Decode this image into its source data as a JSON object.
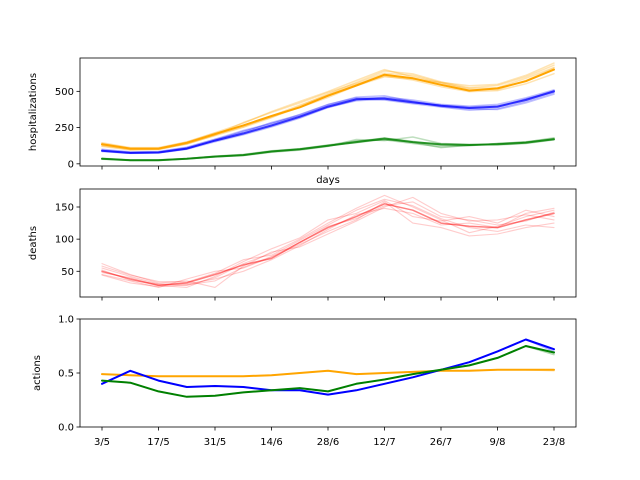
{
  "chart_data": [
    {
      "type": "line",
      "panel": "top",
      "title": "",
      "xlabel": "days",
      "ylabel": "hospitalizations",
      "x": [
        "3/5",
        "10/5",
        "17/5",
        "24/5",
        "31/5",
        "7/6",
        "14/6",
        "21/6",
        "28/6",
        "5/7",
        "12/7",
        "19/7",
        "26/7",
        "2/8",
        "9/8",
        "16/8",
        "23/8"
      ],
      "ylim": [
        -15,
        730
      ],
      "yticks": [
        0,
        250,
        500
      ],
      "grid": false,
      "series": [
        {
          "color": "#ffa500",
          "alpha": 1.0,
          "values": [
            135,
            105,
            105,
            145,
            205,
            265,
            330,
            390,
            470,
            540,
            615,
            590,
            545,
            505,
            520,
            570,
            650
          ]
        },
        {
          "color": "#ffa500",
          "alpha": 0.3,
          "values": [
            125,
            98,
            100,
            138,
            195,
            252,
            318,
            398,
            482,
            562,
            640,
            620,
            565,
            525,
            540,
            600,
            680
          ]
        },
        {
          "color": "#ffa500",
          "alpha": 0.3,
          "values": [
            145,
            112,
            112,
            152,
            215,
            280,
            360,
            430,
            498,
            575,
            650,
            600,
            555,
            520,
            525,
            590,
            665
          ]
        },
        {
          "color": "#ffa500",
          "alpha": 0.3,
          "values": [
            130,
            100,
            98,
            140,
            200,
            255,
            330,
            405,
            475,
            548,
            605,
            578,
            532,
            498,
            505,
            552,
            622
          ]
        },
        {
          "color": "#ffa500",
          "alpha": 0.3,
          "values": [
            140,
            108,
            108,
            150,
            212,
            262,
            322,
            388,
            458,
            538,
            600,
            585,
            562,
            538,
            548,
            610,
            695
          ]
        },
        {
          "color": "#ffa500",
          "alpha": 0.3,
          "values": [
            120,
            95,
            102,
            136,
            198,
            285,
            355,
            420,
            492,
            555,
            625,
            610,
            560,
            512,
            512,
            575,
            660
          ]
        },
        {
          "color": "#0000ff",
          "alpha": 0.75,
          "values": [
            90,
            75,
            78,
            105,
            160,
            210,
            265,
            325,
            395,
            445,
            450,
            425,
            400,
            385,
            395,
            440,
            500
          ]
        },
        {
          "color": "#0000ff",
          "alpha": 0.25,
          "values": [
            95,
            80,
            82,
            112,
            168,
            218,
            285,
            338,
            408,
            460,
            470,
            430,
            395,
            378,
            375,
            420,
            480
          ]
        },
        {
          "color": "#0000ff",
          "alpha": 0.25,
          "values": [
            85,
            72,
            75,
            100,
            152,
            200,
            255,
            315,
            388,
            440,
            460,
            440,
            410,
            398,
            410,
            455,
            510
          ]
        },
        {
          "color": "#0000ff",
          "alpha": 0.25,
          "values": [
            100,
            82,
            85,
            115,
            170,
            230,
            280,
            330,
            400,
            450,
            440,
            415,
            392,
            370,
            380,
            430,
            490
          ]
        },
        {
          "color": "#0000ff",
          "alpha": 0.25,
          "values": [
            88,
            76,
            80,
            108,
            158,
            205,
            260,
            320,
            390,
            435,
            445,
            420,
            405,
            392,
            400,
            445,
            505
          ]
        },
        {
          "color": "#0000ff",
          "alpha": 0.25,
          "values": [
            92,
            78,
            76,
            102,
            162,
            225,
            275,
            340,
            410,
            455,
            455,
            432,
            402,
            382,
            390,
            448,
            495
          ]
        },
        {
          "color": "#008000",
          "alpha": 0.75,
          "values": [
            35,
            25,
            25,
            35,
            50,
            60,
            85,
            100,
            125,
            150,
            175,
            150,
            135,
            130,
            135,
            145,
            170
          ]
        },
        {
          "color": "#008000",
          "alpha": 0.25,
          "values": [
            38,
            27,
            27,
            37,
            53,
            65,
            90,
            105,
            130,
            158,
            165,
            140,
            118,
            125,
            140,
            152,
            175
          ]
        },
        {
          "color": "#008000",
          "alpha": 0.25,
          "values": [
            32,
            23,
            24,
            33,
            48,
            57,
            80,
            95,
            120,
            168,
            160,
            185,
            140,
            135,
            130,
            140,
            165
          ]
        },
        {
          "color": "#008000",
          "alpha": 0.25,
          "values": [
            36,
            26,
            26,
            36,
            52,
            62,
            88,
            102,
            128,
            145,
            170,
            148,
            112,
            128,
            138,
            150,
            180
          ]
        },
        {
          "color": "#008000",
          "alpha": 0.25,
          "values": [
            34,
            24,
            23,
            34,
            49,
            59,
            83,
            98,
            122,
            155,
            178,
            155,
            130,
            132,
            136,
            148,
            172
          ]
        },
        {
          "color": "#008000",
          "alpha": 0.25,
          "values": [
            37,
            26,
            27,
            36,
            51,
            61,
            86,
            101,
            126,
            152,
            168,
            150,
            128,
            128,
            140,
            150,
            168
          ]
        }
      ]
    },
    {
      "type": "line",
      "panel": "middle",
      "title": "",
      "xlabel": "",
      "ylabel": "deaths",
      "x": [
        "3/5",
        "10/5",
        "17/5",
        "24/5",
        "31/5",
        "7/6",
        "14/6",
        "21/6",
        "28/6",
        "5/7",
        "12/7",
        "19/7",
        "26/7",
        "2/8",
        "9/8",
        "16/8",
        "23/8"
      ],
      "ylim": [
        10,
        178
      ],
      "yticks": [
        50,
        100,
        150
      ],
      "grid": false,
      "series": [
        {
          "color": "#ff0000",
          "alpha": 0.5,
          "values": [
            50,
            38,
            28,
            32,
            45,
            60,
            70,
            95,
            118,
            135,
            155,
            145,
            125,
            120,
            118,
            130,
            140
          ]
        },
        {
          "color": "#ff0000",
          "alpha": 0.2,
          "values": [
            55,
            42,
            30,
            28,
            40,
            62,
            78,
            100,
            125,
            148,
            168,
            150,
            130,
            110,
            120,
            135,
            145
          ]
        },
        {
          "color": "#ff0000",
          "alpha": 0.2,
          "values": [
            62,
            45,
            32,
            35,
            25,
            58,
            80,
            88,
            108,
            128,
            150,
            165,
            140,
            128,
            130,
            138,
            130
          ]
        },
        {
          "color": "#ff0000",
          "alpha": 0.2,
          "values": [
            45,
            35,
            25,
            38,
            50,
            55,
            72,
            92,
            112,
            130,
            158,
            125,
            118,
            105,
            108,
            118,
            125
          ]
        },
        {
          "color": "#ff0000",
          "alpha": 0.2,
          "values": [
            48,
            40,
            28,
            25,
            42,
            65,
            85,
            102,
            130,
            140,
            160,
            135,
            128,
            135,
            125,
            145,
            135
          ]
        },
        {
          "color": "#ff0000",
          "alpha": 0.2,
          "values": [
            52,
            36,
            30,
            30,
            38,
            50,
            68,
            90,
            115,
            138,
            148,
            140,
            122,
            125,
            118,
            140,
            148
          ]
        },
        {
          "color": "#ff0000",
          "alpha": 0.2,
          "values": [
            58,
            44,
            34,
            33,
            47,
            68,
            75,
            98,
            122,
            145,
            162,
            152,
            132,
            118,
            112,
            122,
            118
          ]
        },
        {
          "color": "#ff0000",
          "alpha": 0.2,
          "values": [
            44,
            32,
            26,
            29,
            35,
            56,
            73,
            95,
            120,
            132,
            152,
            158,
            135,
            130,
            122,
            128,
            142
          ]
        }
      ]
    },
    {
      "type": "line",
      "panel": "bottom",
      "title": "",
      "xlabel": "",
      "ylabel": "actions",
      "x": [
        "3/5",
        "10/5",
        "17/5",
        "24/5",
        "31/5",
        "7/6",
        "14/6",
        "21/6",
        "28/6",
        "5/7",
        "12/7",
        "19/7",
        "26/7",
        "2/8",
        "9/8",
        "16/8",
        "23/8"
      ],
      "xticks": [
        "3/5",
        "17/5",
        "31/5",
        "14/6",
        "28/6",
        "12/7",
        "26/7",
        "9/8",
        "23/8"
      ],
      "ylim": [
        0.0,
        1.0
      ],
      "yticks": [
        "0.0",
        "0.5",
        "1.0"
      ],
      "grid": false,
      "series": [
        {
          "color": "#ffa500",
          "alpha": 1.0,
          "values": [
            0.49,
            0.48,
            0.47,
            0.47,
            0.47,
            0.47,
            0.48,
            0.5,
            0.52,
            0.49,
            0.5,
            0.51,
            0.52,
            0.52,
            0.53,
            0.53,
            0.53
          ]
        },
        {
          "color": "#ffa500",
          "alpha": 0.3,
          "values": [
            0.49,
            0.48,
            0.47,
            0.47,
            0.47,
            0.47,
            0.48,
            0.5,
            0.52,
            0.49,
            0.5,
            0.51,
            0.52,
            0.52,
            0.53,
            0.53,
            0.52
          ]
        },
        {
          "color": "#0000ff",
          "alpha": 1.0,
          "values": [
            0.4,
            0.52,
            0.43,
            0.37,
            0.38,
            0.37,
            0.34,
            0.34,
            0.3,
            0.34,
            0.4,
            0.46,
            0.53,
            0.6,
            0.7,
            0.81,
            0.72
          ]
        },
        {
          "color": "#0000ff",
          "alpha": 0.3,
          "values": [
            0.4,
            0.52,
            0.43,
            0.37,
            0.38,
            0.37,
            0.34,
            0.34,
            0.3,
            0.34,
            0.4,
            0.46,
            0.53,
            0.6,
            0.7,
            0.81,
            0.7
          ]
        },
        {
          "color": "#008000",
          "alpha": 1.0,
          "values": [
            0.43,
            0.41,
            0.33,
            0.28,
            0.29,
            0.32,
            0.34,
            0.36,
            0.33,
            0.4,
            0.44,
            0.49,
            0.53,
            0.57,
            0.64,
            0.75,
            0.69
          ]
        },
        {
          "color": "#008000",
          "alpha": 0.3,
          "values": [
            0.43,
            0.41,
            0.33,
            0.28,
            0.29,
            0.32,
            0.34,
            0.36,
            0.33,
            0.4,
            0.44,
            0.49,
            0.53,
            0.57,
            0.64,
            0.75,
            0.67
          ]
        }
      ]
    }
  ]
}
